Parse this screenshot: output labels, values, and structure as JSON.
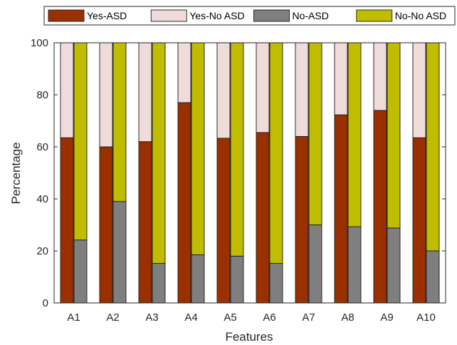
{
  "chart_data": {
    "type": "bar",
    "stacked": true,
    "title": "",
    "xlabel": "Features",
    "ylabel": "Percentage",
    "ylim": [
      0,
      100
    ],
    "yticks": [
      0,
      20,
      40,
      60,
      80,
      100
    ],
    "grid": false,
    "legend_position": "top",
    "categories": [
      "A1",
      "A2",
      "A3",
      "A4",
      "A5",
      "A6",
      "A7",
      "A8",
      "A9",
      "A10"
    ],
    "groups": [
      {
        "name": "Yes",
        "series": [
          {
            "name": "Yes-ASD",
            "color": "#9a3000",
            "values": [
              63.5,
              60,
              62,
              77,
              63.3,
              65.5,
              64,
              72.3,
              74,
              63.5
            ]
          },
          {
            "name": "Yes-No ASD",
            "color": "#f0dbdb",
            "values": [
              36.5,
              40,
              38,
              23,
              36.7,
              34.5,
              36,
              27.7,
              26,
              36.5
            ]
          }
        ]
      },
      {
        "name": "No",
        "series": [
          {
            "name": "No-ASD",
            "color": "#7f7f7f",
            "values": [
              24.2,
              39,
              15.2,
              18.5,
              18,
              15.2,
              30,
              29.3,
              28.8,
              20
            ]
          },
          {
            "name": "No-No ASD",
            "color": "#c0bc00",
            "values": [
              75.8,
              61,
              84.8,
              81.5,
              82,
              84.8,
              70,
              70.7,
              71.2,
              80
            ]
          }
        ]
      }
    ]
  }
}
